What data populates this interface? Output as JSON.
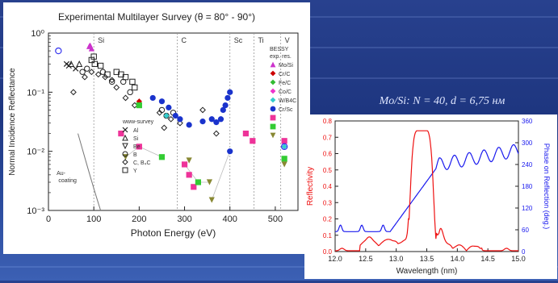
{
  "caption": "Mo/Si: N = 40, d = 6,75 нм",
  "chart_data": [
    {
      "type": "scatter",
      "title": "Experimental Multilayer Survey (θ = 80° - 90°)",
      "xlabel": "Photon Energy (eV)",
      "ylabel": "Normal Incidence Reflectance",
      "xlim": [
        0,
        550
      ],
      "ylim": [
        0.001,
        1
      ],
      "yscale": "log",
      "xticks": [
        "0",
        "100",
        "200",
        "300",
        "400",
        "500"
      ],
      "yticks": [
        "10⁰",
        "10⁻¹",
        "10⁻²",
        "10⁻³"
      ],
      "edges": [
        {
          "label": "Si",
          "x": 100
        },
        {
          "label": "C",
          "x": 284
        },
        {
          "label": "Sc",
          "x": 400
        },
        {
          "label": "Ti",
          "x": 453
        },
        {
          "label": "V",
          "x": 512
        }
      ],
      "legend_title": "BESSY exp. res.",
      "legend": [
        {
          "name": "Mo/Si",
          "color": "#cc33cc",
          "marker": "triangle"
        },
        {
          "name": "Cr/C",
          "color": "#cc0000",
          "marker": "diamond"
        },
        {
          "name": "Fe/C",
          "color": "#33bb33",
          "marker": "diamond"
        },
        {
          "name": "Co/C",
          "color": "#ee33cc",
          "marker": "diamond"
        },
        {
          "name": "W/B4C",
          "color": "#33cccc",
          "marker": "diamond"
        },
        {
          "name": "Cr/Sc",
          "color": "#1a33cc",
          "marker": "circle"
        },
        {
          "name": "",
          "color": "#ee3399",
          "marker": "square"
        },
        {
          "name": "",
          "color": "#33cc33",
          "marker": "square"
        },
        {
          "name": "",
          "color": "#888833",
          "marker": "triangle-down"
        }
      ],
      "survey_legend_title": "www-survey",
      "survey_legend": [
        {
          "name": "Al",
          "marker": "x"
        },
        {
          "name": "Si",
          "marker": "triangle"
        },
        {
          "name": "Be",
          "marker": "triangle-down"
        },
        {
          "name": "B",
          "marker": "circle"
        },
        {
          "name": "C, B₄C",
          "marker": "diamond"
        },
        {
          "name": "Y",
          "marker": "square"
        }
      ],
      "annotation": "Au-coating",
      "series": [
        {
          "marker": "triangle",
          "color": "#cc33cc",
          "points": [
            [
              90,
              0.6
            ],
            [
              92,
              0.62
            ],
            [
              95,
              0.55
            ]
          ]
        },
        {
          "marker": "diamond",
          "color": "#cc0000",
          "points": [
            [
              200,
              0.07
            ]
          ]
        },
        {
          "marker": "circle",
          "color": "#1a33cc",
          "points": [
            [
              230,
              0.08
            ],
            [
              250,
              0.07
            ],
            [
              265,
              0.055
            ],
            [
              280,
              0.04
            ],
            [
              290,
              0.035
            ],
            [
              310,
              0.028
            ],
            [
              340,
              0.032
            ],
            [
              360,
              0.035
            ],
            [
              370,
              0.031
            ],
            [
              380,
              0.035
            ],
            [
              385,
              0.05
            ],
            [
              390,
              0.06
            ],
            [
              395,
              0.08
            ],
            [
              400,
              0.1
            ],
            [
              400,
              0.01
            ]
          ]
        },
        {
          "marker": "diamond",
          "color": "#33cccc",
          "points": [
            [
              260,
              0.04
            ],
            [
              520,
              0.012
            ]
          ]
        },
        {
          "marker": "square",
          "color": "#ee3399",
          "points": [
            [
              160,
              0.02
            ],
            [
              200,
              0.012
            ],
            [
              300,
              0.006
            ],
            [
              310,
              0.004
            ],
            [
              320,
              0.0025
            ],
            [
              435,
              0.02
            ],
            [
              450,
              0.015
            ],
            [
              520,
              0.015
            ]
          ]
        },
        {
          "marker": "square",
          "color": "#33cc33",
          "points": [
            [
              200,
              0.06
            ],
            [
              250,
              0.008
            ],
            [
              330,
              0.003
            ],
            [
              520,
              0.0075
            ]
          ]
        },
        {
          "marker": "triangle-down",
          "color": "#888833",
          "points": [
            [
              170,
              0.008
            ],
            [
              310,
              0.007
            ],
            [
              355,
              0.003
            ],
            [
              360,
              0.0015
            ],
            [
              520,
              0.006
            ]
          ]
        },
        {
          "marker": "circle-open",
          "color": "#3333ee",
          "points": [
            [
              22,
              0.5
            ],
            [
              520,
              0.012
            ]
          ]
        }
      ]
    },
    {
      "type": "line",
      "title": "",
      "xlabel": "Wavelength (nm)",
      "ylabel": "Reflectivity",
      "ylabel_right": "Phase on Reflection (deg.)",
      "xlim": [
        12.0,
        15.0
      ],
      "ylim": [
        0,
        0.8
      ],
      "ylim_right": [
        0,
        360
      ],
      "xticks": [
        "12.0",
        "12.5",
        "13.0",
        "13.5",
        "14.0",
        "14.5",
        "15.0"
      ],
      "yticks": [
        "0.0",
        "0.1",
        "0.2",
        "0.3",
        "0.4",
        "0.5",
        "0.6",
        "0.7",
        "0.8"
      ],
      "yticks_right": [
        "0",
        "60",
        "120",
        "180",
        "240",
        "300",
        "360"
      ],
      "series": [
        {
          "name": "Reflectivity",
          "color": "#ee1111",
          "axis": "left"
        },
        {
          "name": "Phase on Reflection",
          "color": "#1a1aee",
          "axis": "right"
        }
      ]
    }
  ]
}
